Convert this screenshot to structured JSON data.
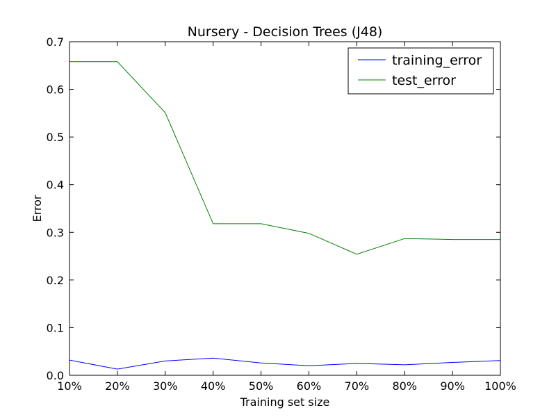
{
  "chart_data": {
    "type": "line",
    "title": "Nursery - Decision Trees (J48)",
    "xlabel": "Training set size",
    "ylabel": "Error",
    "categories": [
      "10%",
      "20%",
      "30%",
      "40%",
      "50%",
      "60%",
      "70%",
      "80%",
      "90%",
      "100%"
    ],
    "ylim": [
      0,
      0.7
    ],
    "yticks": [
      0.0,
      0.1,
      0.2,
      0.3,
      0.4,
      0.5,
      0.6,
      0.7
    ],
    "ytick_labels": [
      "0.0",
      "0.1",
      "0.2",
      "0.3",
      "0.4",
      "0.5",
      "0.6",
      "0.7"
    ],
    "grid": false,
    "legend_position": "top-right",
    "series": [
      {
        "name": "training_error",
        "color": "#0000ff",
        "values": [
          0.032,
          0.013,
          0.03,
          0.036,
          0.026,
          0.02,
          0.025,
          0.022,
          0.027,
          0.031
        ]
      },
      {
        "name": "test_error",
        "color": "#008000",
        "values": [
          0.658,
          0.658,
          0.551,
          0.318,
          0.318,
          0.298,
          0.254,
          0.287,
          0.285,
          0.285
        ]
      }
    ]
  }
}
